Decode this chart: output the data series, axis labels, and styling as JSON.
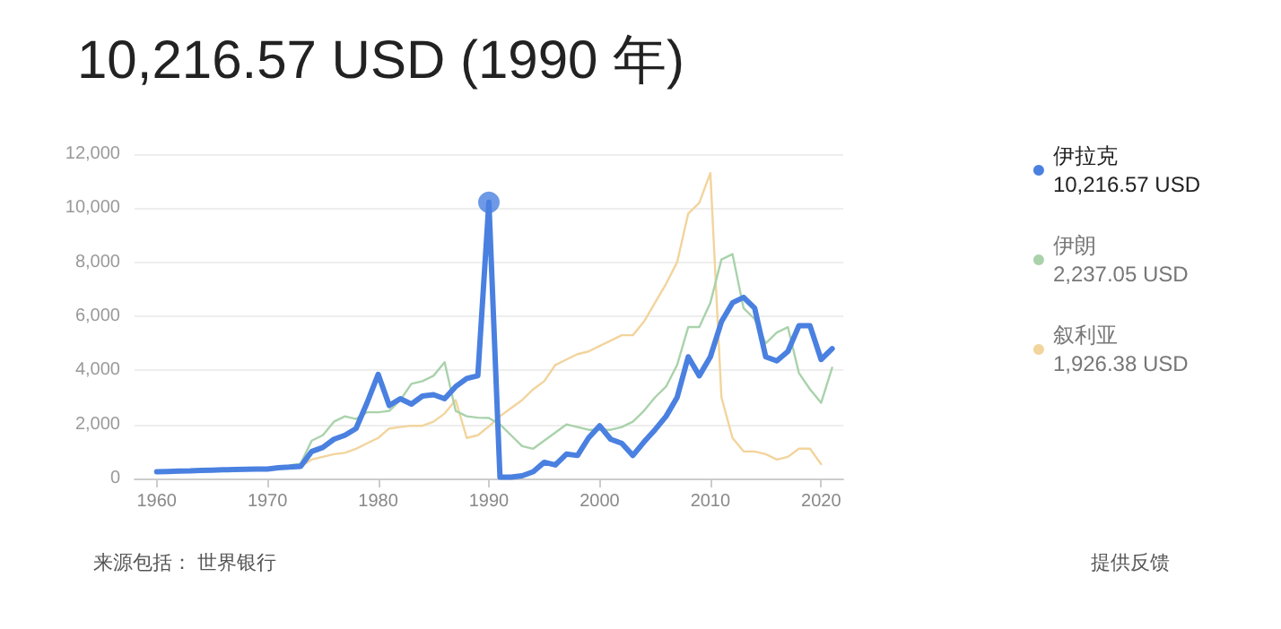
{
  "chart_data": {
    "type": "line",
    "title": "10,216.57 USD (1990 年)",
    "x": [
      1960,
      1961,
      1962,
      1963,
      1964,
      1965,
      1966,
      1967,
      1968,
      1969,
      1970,
      1971,
      1972,
      1973,
      1974,
      1975,
      1976,
      1977,
      1978,
      1979,
      1980,
      1981,
      1982,
      1983,
      1984,
      1985,
      1986,
      1987,
      1988,
      1989,
      1990,
      1991,
      1992,
      1993,
      1994,
      1995,
      1996,
      1997,
      1998,
      1999,
      2000,
      2001,
      2002,
      2003,
      2004,
      2005,
      2006,
      2007,
      2008,
      2009,
      2010,
      2011,
      2012,
      2013,
      2014,
      2015,
      2016,
      2017,
      2018,
      2019,
      2020,
      2021
    ],
    "series": [
      {
        "name": "伊拉克",
        "color": "#4a80e0",
        "values": [
          250,
          260,
          270,
          280,
          300,
          310,
          320,
          330,
          340,
          350,
          350,
          400,
          420,
          450,
          1000,
          1150,
          1450,
          1600,
          1850,
          2800,
          3850,
          2700,
          2950,
          2750,
          3050,
          3100,
          2950,
          3400,
          3700,
          3800,
          10216.57,
          50,
          50,
          100,
          250,
          600,
          500,
          900,
          850,
          1500,
          1950,
          1450,
          1300,
          850,
          1350,
          1800,
          2300,
          3000,
          4500,
          3800,
          4500,
          5800,
          6500,
          6700,
          6300,
          4500,
          4350,
          4700,
          5650,
          5650,
          4400,
          4800
        ]
      },
      {
        "name": "伊朗",
        "color": "#a9d2ab",
        "values": [
          null,
          null,
          null,
          null,
          null,
          null,
          null,
          null,
          null,
          null,
          null,
          null,
          480,
          550,
          1400,
          1600,
          2100,
          2300,
          2200,
          2450,
          2450,
          2500,
          2900,
          3500,
          3600,
          3800,
          4300,
          2500,
          2300,
          2250,
          2237.05,
          2000,
          1600,
          1200,
          1100,
          1400,
          1700,
          2000,
          1900,
          1800,
          1800,
          1800,
          1900,
          2100,
          2500,
          3000,
          3400,
          4200,
          5600,
          5600,
          6500,
          8100,
          8300,
          6300,
          5900,
          5000,
          5400,
          5600,
          3900,
          3300,
          2800,
          4100
        ]
      },
      {
        "type": "scatter",
        "marker": "circle",
        "color": "#4a80e0",
        "x": [
          1990
        ],
        "values": [
          10216.57
        ]
      },
      {
        "name": "叙利亚",
        "color": "#f2d49c",
        "values": [
          null,
          null,
          null,
          null,
          null,
          null,
          null,
          null,
          null,
          null,
          null,
          null,
          null,
          450,
          700,
          800,
          900,
          950,
          1100,
          1300,
          1500,
          1850,
          1900,
          1950,
          1950,
          2100,
          2400,
          2900,
          1500,
          1600,
          1926.38,
          2300,
          2600,
          2900,
          3300,
          3600,
          4200,
          4400,
          4600,
          4700,
          4900,
          5100,
          5300,
          5300,
          5800,
          6500,
          7200,
          8000,
          9800,
          10200,
          11300,
          3000,
          1500,
          1000,
          1000,
          900,
          700,
          800,
          1100,
          1100,
          530,
          null
        ]
      }
    ],
    "xlim": [
      1958,
      2022
    ],
    "xticks": [
      1960,
      1970,
      1980,
      1990,
      2000,
      2010,
      2020
    ],
    "ylim": [
      0,
      12000
    ],
    "yticks": [
      0,
      {
        "value": 2000,
        "label": "2,000"
      },
      {
        "value": 4000,
        "label": "4,000"
      },
      {
        "value": 6000,
        "label": "6,000"
      },
      {
        "value": 8000,
        "label": "8,000"
      },
      {
        "value": 10000,
        "label": "10,000"
      },
      {
        "value": 12000,
        "label": "12,000"
      }
    ],
    "grid": "y",
    "legend": "right",
    "marker": "none",
    "line_style": "solid",
    "annotations": [
      "10,216.57 USD",
      "2,237.05 USD",
      "1,926.38 USD",
      "来源包括： 世界银行",
      "提供反馈"
    ]
  }
}
